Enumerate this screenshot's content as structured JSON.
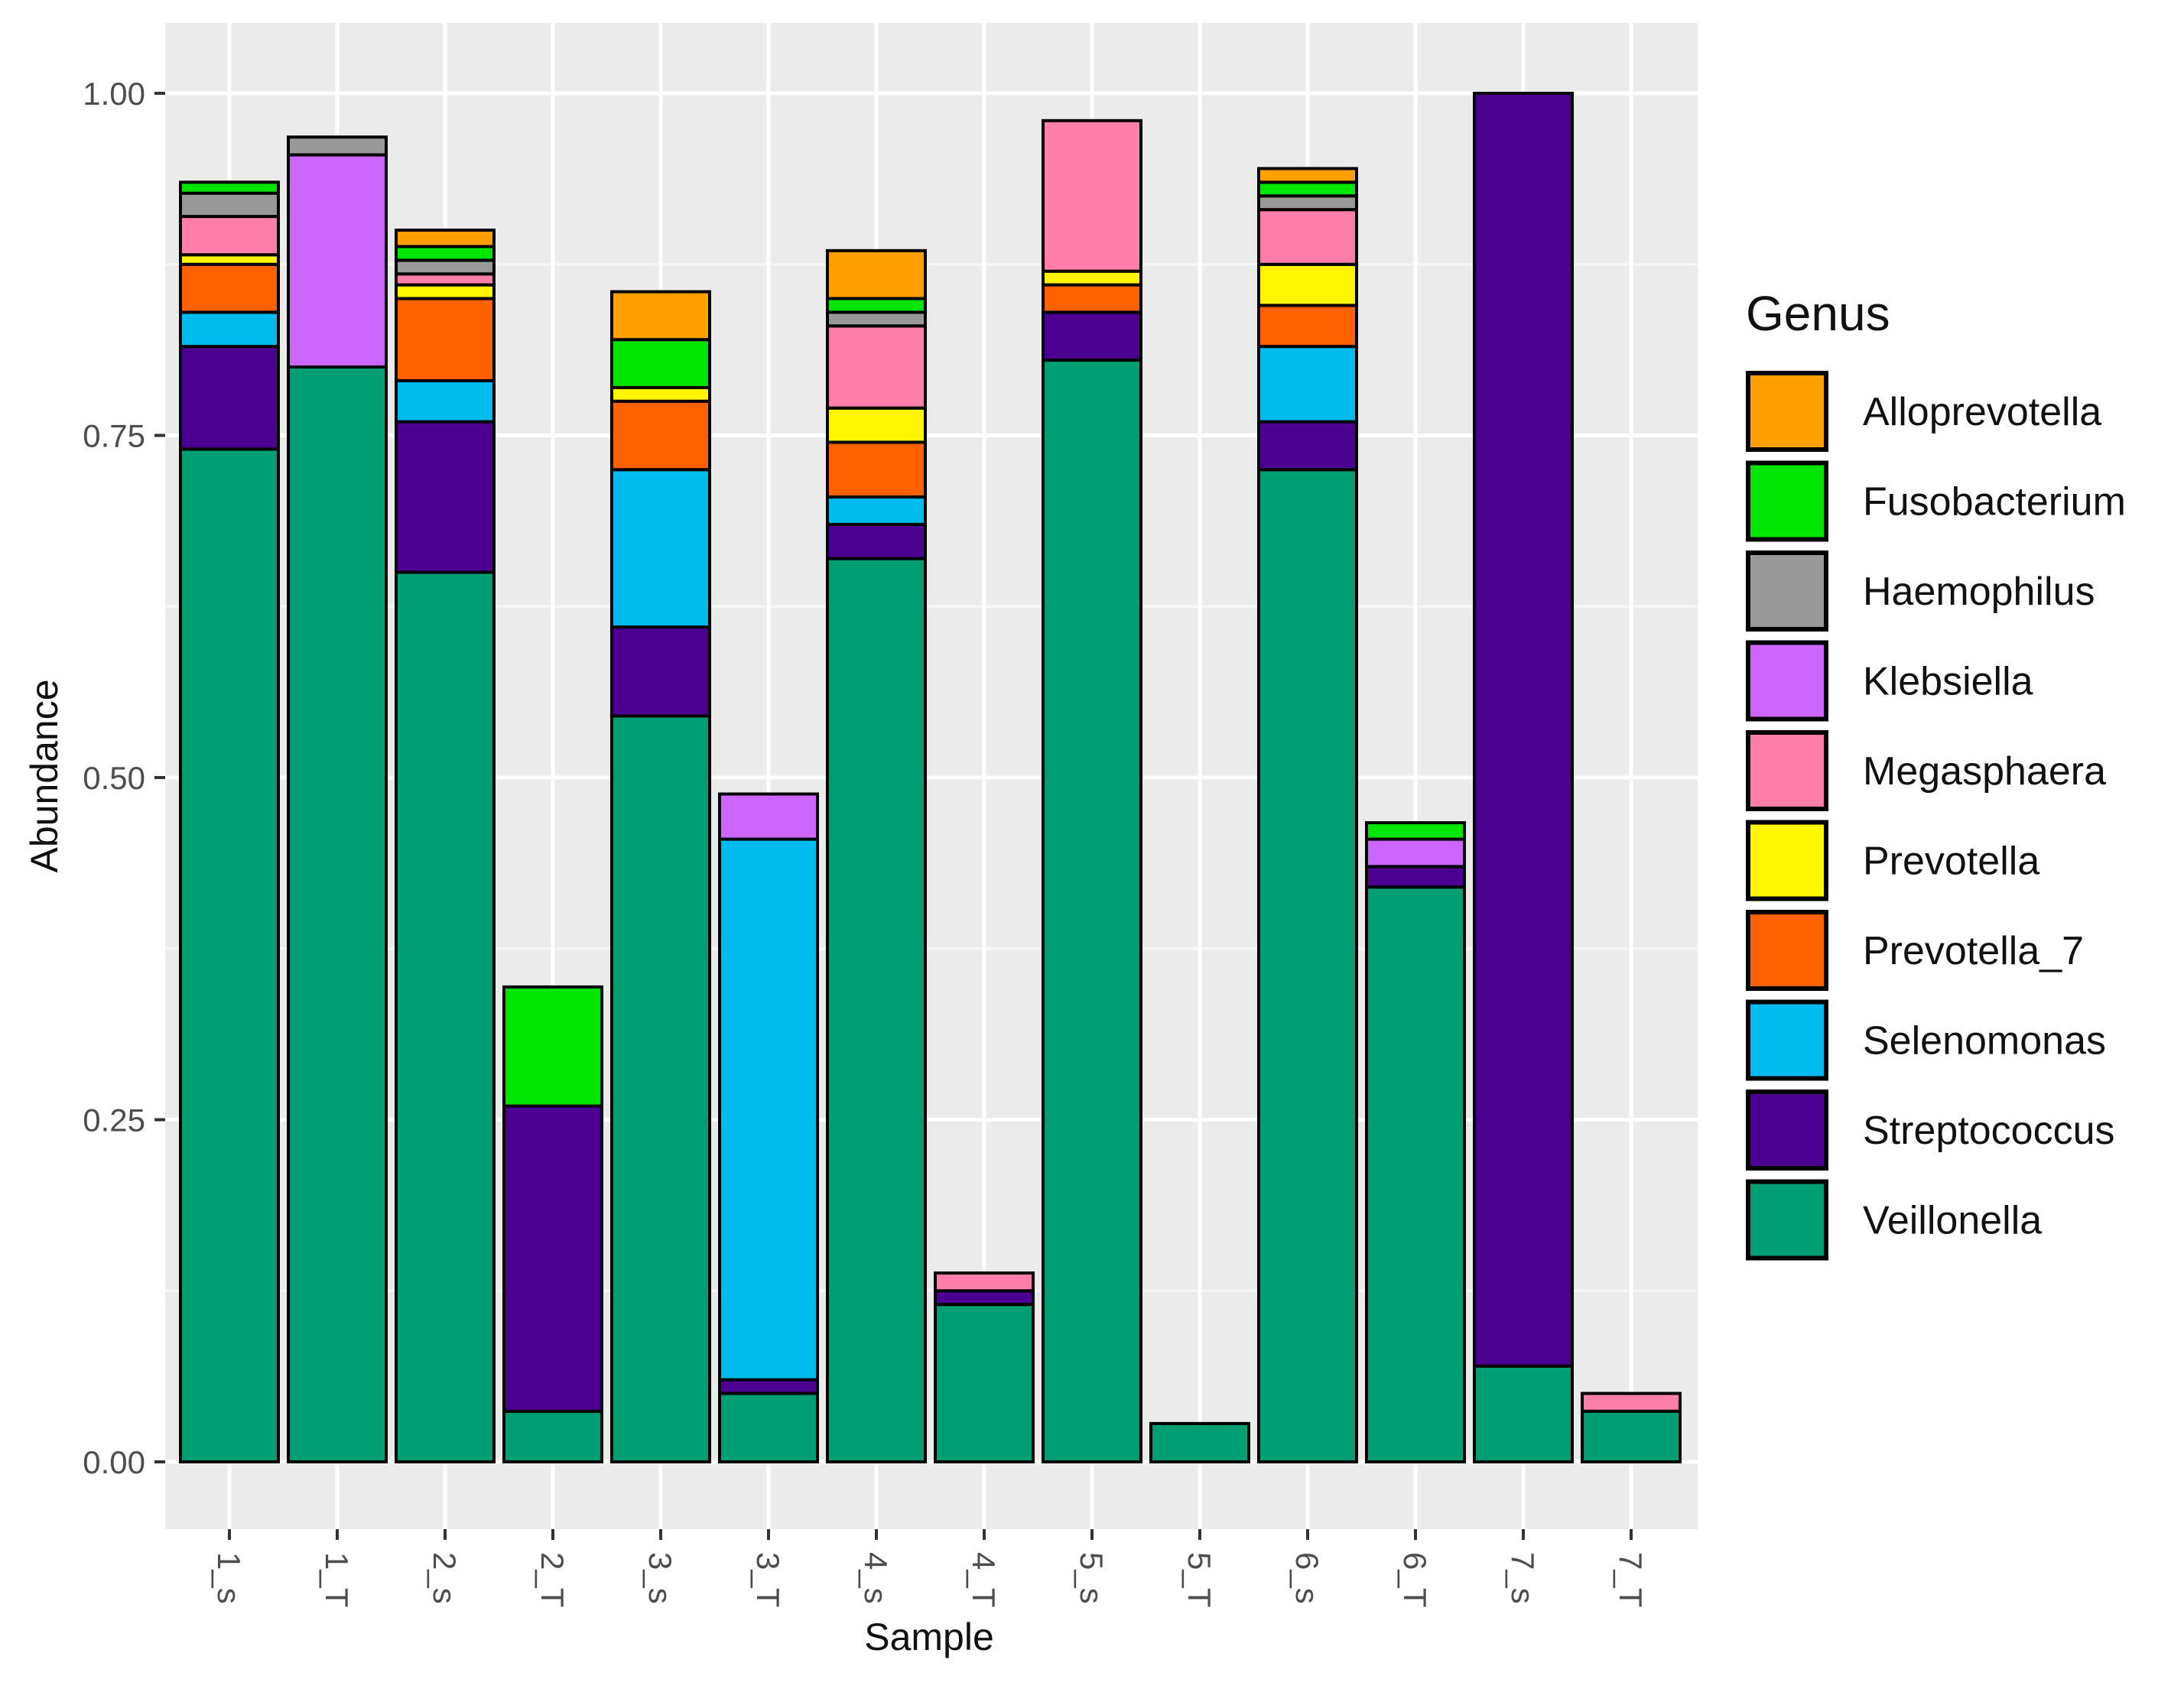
{
  "chart_data": {
    "type": "bar",
    "stacked": true,
    "title": "",
    "xlabel": "Sample",
    "ylabel": "Abundance",
    "ylim": [
      0,
      1.04
    ],
    "yticks": [
      "0.00",
      "0.25",
      "0.50",
      "0.75",
      "1.00"
    ],
    "grid": true,
    "legend": {
      "title": "Genus",
      "position": "right"
    },
    "categories": [
      "1_s",
      "1_T",
      "2_s",
      "2_T",
      "3_s",
      "3_T",
      "4_s",
      "4_T",
      "5_s",
      "5_T",
      "6_s",
      "6_T",
      "7_s",
      "7_T"
    ],
    "series": [
      {
        "name": "Veillonella",
        "color": "#009E73",
        "values": [
          0.74,
          0.8,
          0.65,
          0.037,
          0.545,
          0.05,
          0.66,
          0.115,
          0.805,
          0.028,
          0.725,
          0.42,
          0.07,
          0.037
        ]
      },
      {
        "name": "Streptococcus",
        "color": "#4B0092",
        "values": [
          0.075,
          0,
          0.11,
          0.223,
          0.065,
          0.01,
          0.025,
          0.01,
          0.035,
          0,
          0.035,
          0.015,
          0.93,
          0
        ]
      },
      {
        "name": "Selenomonas",
        "color": "#00BBEE",
        "values": [
          0.025,
          0,
          0.03,
          0,
          0.115,
          0.395,
          0.02,
          0,
          0,
          0,
          0.055,
          0,
          0,
          0
        ]
      },
      {
        "name": "Prevotella_7",
        "color": "#FF6000",
        "values": [
          0.035,
          0,
          0.06,
          0,
          0.05,
          0,
          0.04,
          0,
          0.02,
          0,
          0.03,
          0,
          0,
          0
        ]
      },
      {
        "name": "Prevotella",
        "color": "#FFF500",
        "values": [
          0.007,
          0,
          0.01,
          0,
          0.01,
          0,
          0.025,
          0,
          0.01,
          0,
          0.03,
          0,
          0,
          0
        ]
      },
      {
        "name": "Megasphaera",
        "color": "#FF7FAA",
        "values": [
          0.028,
          0,
          0.008,
          0,
          0,
          0,
          0.06,
          0.013,
          0.11,
          0,
          0.04,
          0,
          0,
          0.013
        ]
      },
      {
        "name": "Klebsiella",
        "color": "#CC66FF",
        "values": [
          0,
          0.155,
          0,
          0,
          0,
          0.033,
          0,
          0,
          0,
          0,
          0,
          0.02,
          0,
          0
        ]
      },
      {
        "name": "Haemophilus",
        "color": "#999999",
        "values": [
          0.017,
          0.013,
          0.01,
          0,
          0,
          0,
          0.01,
          0,
          0,
          0,
          0.01,
          0,
          0,
          0
        ]
      },
      {
        "name": "Fusobacterium",
        "color": "#00E600",
        "values": [
          0.008,
          0,
          0.01,
          0.087,
          0.035,
          0,
          0.01,
          0,
          0,
          0,
          0.01,
          0.012,
          0,
          0
        ]
      },
      {
        "name": "Alloprevotella",
        "color": "#FFA000",
        "values": [
          0,
          0,
          0.012,
          0,
          0.035,
          0,
          0.035,
          0,
          0,
          0,
          0.01,
          0,
          0,
          0
        ]
      }
    ],
    "legend_order": [
      "Alloprevotella",
      "Fusobacterium",
      "Haemophilus",
      "Klebsiella",
      "Megasphaera",
      "Prevotella",
      "Prevotella_7",
      "Selenomonas",
      "Streptococcus",
      "Veillonella"
    ]
  }
}
